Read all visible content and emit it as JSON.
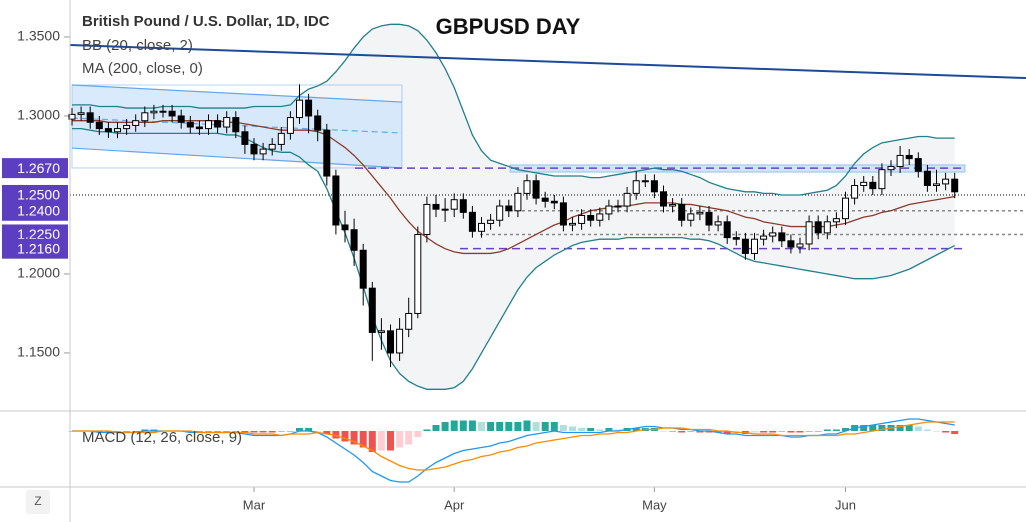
{
  "chart_data": {
    "type": "candlestick",
    "title": "GBPUSD DAY",
    "legend": [
      "British Pound / U.S. Dollar, 1D, IDC",
      "BB (20, close, 2)",
      "MA (200, close, 0)"
    ],
    "categories": [
      null,
      null,
      null,
      null,
      null,
      null,
      null,
      null,
      null,
      null,
      null,
      null,
      null,
      null,
      null,
      null,
      null,
      null,
      null,
      null,
      "Mar",
      null,
      null,
      null,
      null,
      null,
      null,
      null,
      null,
      null,
      null,
      null,
      null,
      null,
      null,
      null,
      null,
      null,
      null,
      null,
      null,
      null,
      "Apr",
      null,
      null,
      null,
      null,
      null,
      null,
      null,
      null,
      null,
      null,
      null,
      null,
      null,
      null,
      null,
      null,
      null,
      null,
      null,
      null,
      null,
      "May",
      null,
      null,
      null,
      null,
      null,
      null,
      null,
      null,
      null,
      null,
      null,
      null,
      null,
      null,
      null,
      null,
      null,
      null,
      null,
      null,
      "Jun",
      null,
      null,
      null,
      null,
      null,
      null,
      null,
      null,
      null,
      null,
      null,
      null
    ],
    "open": [
      1.298,
      1.301,
      1.302,
      1.296,
      1.292,
      1.29,
      1.292,
      1.294,
      1.297,
      1.302,
      1.303,
      1.303,
      1.3,
      1.296,
      1.293,
      1.292,
      1.297,
      1.293,
      1.299,
      1.29,
      1.282,
      1.276,
      1.279,
      1.282,
      1.289,
      1.299,
      1.31,
      1.3,
      1.291,
      1.262,
      1.231,
      1.228,
      1.215,
      1.191,
      1.163,
      1.164,
      1.15,
      1.165,
      1.175,
      1.225,
      1.244,
      1.241,
      1.241,
      1.247,
      1.239,
      1.227,
      1.232,
      1.234,
      1.243,
      1.24,
      1.251,
      1.259,
      1.248,
      1.246,
      1.245,
      1.231,
      1.232,
      1.237,
      1.234,
      1.238,
      1.243,
      1.243,
      1.251,
      1.259,
      1.259,
      1.252,
      1.243,
      1.244,
      1.234,
      1.238,
      1.239,
      1.231,
      1.233,
      1.223,
      1.222,
      1.213,
      1.222,
      1.224,
      1.226,
      1.221,
      1.217,
      1.219,
      1.233,
      1.226,
      1.233,
      1.235,
      1.248,
      1.256,
      1.258,
      1.254,
      1.266,
      1.268,
      1.275,
      1.273,
      1.265,
      1.256,
      1.257,
      1.26
    ],
    "high": [
      1.305,
      1.306,
      1.306,
      1.3,
      1.296,
      1.296,
      1.298,
      1.301,
      1.306,
      1.307,
      1.307,
      1.307,
      1.304,
      1.3,
      1.297,
      1.301,
      1.301,
      1.303,
      1.303,
      1.294,
      1.286,
      1.283,
      1.286,
      1.293,
      1.303,
      1.32,
      1.314,
      1.304,
      1.295,
      1.266,
      1.24,
      1.235,
      1.219,
      1.195,
      1.172,
      1.168,
      1.172,
      1.185,
      1.23,
      1.249,
      1.25,
      1.248,
      1.251,
      1.251,
      1.243,
      1.236,
      1.238,
      1.247,
      1.247,
      1.255,
      1.263,
      1.263,
      1.252,
      1.25,
      1.249,
      1.236,
      1.241,
      1.241,
      1.242,
      1.247,
      1.247,
      1.255,
      1.265,
      1.263,
      1.263,
      1.256,
      1.248,
      1.248,
      1.242,
      1.243,
      1.243,
      1.237,
      1.237,
      1.227,
      1.226,
      1.226,
      1.228,
      1.23,
      1.23,
      1.225,
      1.223,
      1.237,
      1.237,
      1.237,
      1.239,
      1.252,
      1.26,
      1.262,
      1.262,
      1.27,
      1.272,
      1.281,
      1.279,
      1.277,
      1.269,
      1.266,
      1.264,
      1.264
    ],
    "low": [
      1.294,
      1.297,
      1.292,
      1.288,
      1.286,
      1.286,
      1.288,
      1.29,
      1.293,
      1.298,
      1.299,
      1.296,
      1.292,
      1.289,
      1.288,
      1.288,
      1.289,
      1.289,
      1.286,
      1.276,
      1.272,
      1.272,
      1.275,
      1.278,
      1.285,
      1.295,
      1.289,
      1.284,
      1.256,
      1.225,
      1.22,
      1.205,
      1.18,
      1.145,
      1.152,
      1.141,
      1.145,
      1.16,
      1.172,
      1.22,
      1.236,
      1.233,
      1.236,
      1.235,
      1.223,
      1.223,
      1.228,
      1.23,
      1.236,
      1.236,
      1.247,
      1.244,
      1.242,
      1.241,
      1.227,
      1.227,
      1.228,
      1.23,
      1.23,
      1.234,
      1.239,
      1.239,
      1.247,
      1.255,
      1.248,
      1.239,
      1.239,
      1.23,
      1.23,
      1.234,
      1.227,
      1.227,
      1.219,
      1.218,
      1.209,
      1.209,
      1.218,
      1.22,
      1.217,
      1.213,
      1.213,
      1.215,
      1.222,
      1.222,
      1.229,
      1.231,
      1.244,
      1.252,
      1.25,
      1.25,
      1.262,
      1.264,
      1.269,
      1.261,
      1.252,
      1.252,
      1.253,
      1.248
    ],
    "close": [
      1.301,
      1.302,
      1.296,
      1.292,
      1.29,
      1.292,
      1.294,
      1.297,
      1.302,
      1.303,
      1.303,
      1.3,
      1.296,
      1.293,
      1.292,
      1.297,
      1.293,
      1.299,
      1.29,
      1.282,
      1.276,
      1.279,
      1.282,
      1.289,
      1.299,
      1.31,
      1.3,
      1.291,
      1.262,
      1.231,
      1.228,
      1.215,
      1.191,
      1.163,
      1.164,
      1.15,
      1.165,
      1.175,
      1.225,
      1.244,
      1.241,
      1.241,
      1.247,
      1.239,
      1.227,
      1.232,
      1.234,
      1.243,
      1.24,
      1.251,
      1.259,
      1.248,
      1.246,
      1.245,
      1.231,
      1.232,
      1.237,
      1.234,
      1.238,
      1.243,
      1.243,
      1.251,
      1.259,
      1.259,
      1.252,
      1.243,
      1.244,
      1.234,
      1.238,
      1.239,
      1.231,
      1.233,
      1.223,
      1.222,
      1.213,
      1.222,
      1.224,
      1.226,
      1.221,
      1.217,
      1.219,
      1.233,
      1.226,
      1.233,
      1.235,
      1.248,
      1.256,
      1.258,
      1.254,
      1.266,
      1.268,
      1.275,
      1.273,
      1.265,
      1.256,
      1.257,
      1.26,
      1.252
    ],
    "up_color": "#ffffff",
    "down_color": "#000000",
    "bb_fill": "#f3f4f6",
    "overlays": [
      {
        "color": "#22808a",
        "values": [
          1.307,
          1.307,
          1.307,
          1.306,
          1.306,
          1.306,
          1.305,
          1.305,
          1.305,
          1.305,
          1.306,
          1.306,
          1.306,
          1.306,
          1.305,
          1.305,
          1.305,
          1.305,
          1.305,
          1.305,
          1.306,
          1.306,
          1.306,
          1.306,
          1.307,
          1.313,
          1.317,
          1.319,
          1.322,
          1.328,
          1.335,
          1.343,
          1.35,
          1.355,
          1.357,
          1.358,
          1.358,
          1.357,
          1.354,
          1.348,
          1.34,
          1.33,
          1.318,
          1.303,
          1.288,
          1.278,
          1.272,
          1.27,
          1.268,
          1.266,
          1.265,
          1.264,
          1.263,
          1.262,
          1.262,
          1.262,
          1.262,
          1.261,
          1.261,
          1.262,
          1.263,
          1.264,
          1.265,
          1.266,
          1.267,
          1.266,
          1.266,
          1.265,
          1.263,
          1.261,
          1.258,
          1.256,
          1.254,
          1.253,
          1.252,
          1.252,
          1.251,
          1.251,
          1.25,
          1.25,
          1.25,
          1.251,
          1.252,
          1.253,
          1.256,
          1.262,
          1.27,
          1.276,
          1.28,
          1.283,
          1.284,
          1.285,
          1.286,
          1.287,
          1.287,
          1.286,
          1.286,
          1.286
        ]
      },
      {
        "color": "#22808a",
        "values": [
          1.292,
          1.292,
          1.291,
          1.29,
          1.29,
          1.289,
          1.289,
          1.289,
          1.289,
          1.289,
          1.289,
          1.289,
          1.289,
          1.289,
          1.289,
          1.289,
          1.289,
          1.288,
          1.288,
          1.286,
          1.283,
          1.28,
          1.278,
          1.277,
          1.277,
          1.274,
          1.269,
          1.265,
          1.254,
          1.24,
          1.226,
          1.21,
          1.192,
          1.173,
          1.158,
          1.145,
          1.137,
          1.132,
          1.129,
          1.127,
          1.127,
          1.127,
          1.128,
          1.132,
          1.14,
          1.15,
          1.16,
          1.17,
          1.18,
          1.19,
          1.198,
          1.204,
          1.208,
          1.212,
          1.215,
          1.218,
          1.22,
          1.221,
          1.222,
          1.222,
          1.222,
          1.223,
          1.223,
          1.223,
          1.223,
          1.223,
          1.223,
          1.223,
          1.222,
          1.222,
          1.221,
          1.219,
          1.216,
          1.213,
          1.21,
          1.208,
          1.207,
          1.206,
          1.205,
          1.204,
          1.203,
          1.202,
          1.201,
          1.2,
          1.199,
          1.198,
          1.197,
          1.197,
          1.197,
          1.198,
          1.199,
          1.201,
          1.203,
          1.206,
          1.209,
          1.212,
          1.215,
          1.218
        ]
      },
      {
        "color": "#8d3b2b",
        "values": [
          1.297,
          1.297,
          1.297,
          1.297,
          1.296,
          1.296,
          1.296,
          1.296,
          1.296,
          1.296,
          1.297,
          1.297,
          1.297,
          1.297,
          1.297,
          1.297,
          1.297,
          1.296,
          1.296,
          1.295,
          1.294,
          1.293,
          1.292,
          1.291,
          1.291,
          1.291,
          1.291,
          1.29,
          1.288,
          1.284,
          1.28,
          1.275,
          1.269,
          1.262,
          1.255,
          1.248,
          1.24,
          1.233,
          1.227,
          1.223,
          1.219,
          1.216,
          1.214,
          1.213,
          1.213,
          1.213,
          1.213,
          1.214,
          1.216,
          1.219,
          1.222,
          1.225,
          1.228,
          1.231,
          1.233,
          1.236,
          1.238,
          1.24,
          1.241,
          1.242,
          1.243,
          1.243,
          1.244,
          1.245,
          1.245,
          1.245,
          1.245,
          1.244,
          1.244,
          1.243,
          1.242,
          1.241,
          1.24,
          1.238,
          1.236,
          1.235,
          1.233,
          1.232,
          1.231,
          1.23,
          1.23,
          1.23,
          1.23,
          1.23,
          1.231,
          1.232,
          1.234,
          1.236,
          1.237,
          1.239,
          1.24,
          1.242,
          1.244,
          1.245,
          1.246,
          1.247,
          1.248,
          1.249
        ]
      }
    ],
    "ylim": [
      1.1139,
      1.3734
    ],
    "yticks": [
      {
        "value": 1.15,
        "label": "1.1500"
      },
      {
        "value": 1.2,
        "label": "1.2000"
      },
      {
        "value": 1.3,
        "label": "1.3000"
      },
      {
        "value": 1.35,
        "label": "1.3500"
      }
    ],
    "levels": [
      {
        "value": 1.267,
        "label": "1.2670",
        "color": "#6a3fc9",
        "line": "dashed"
      },
      {
        "value": 1.25,
        "label": "1.2500",
        "color": "#000000",
        "line": "dotted"
      },
      {
        "value": 1.24,
        "label": "1.2400",
        "color": "#888888",
        "line": "dashed"
      },
      {
        "value": 1.225,
        "label": "1.2250",
        "color": "#888888",
        "line": "dashed"
      },
      {
        "value": 1.216,
        "label": "1.2160",
        "color": "#6a3fc9",
        "line": "dashed"
      }
    ],
    "level_box_color": "#5c3fc0",
    "trendline": {
      "color": "#1d4a9a",
      "values": [
        1.3449,
        1.324
      ]
    },
    "channel": {
      "color": "#64a8e8",
      "fill": "#cfe5fb",
      "upper": [
        1.3196,
        1.3088
      ],
      "middle": [
        1.2987,
        1.2892
      ],
      "lower": [
        1.2797,
        1.2671
      ]
    },
    "zone": {
      "color": "#cfe5fb",
      "values": [
        1.269,
        1.2645
      ]
    },
    "macd": {
      "label": "MACD (12, 26, close, 9)",
      "ylim": [
        -0.036,
        0.012
      ],
      "macd_color": "#2196f3",
      "signal_color": "#ff8a00",
      "hist_colors": [
        "#26a69a",
        "#b2dfdb",
        "#ef5350",
        "#ffcdd2"
      ],
      "macd": [
        0.0,
        0.0,
        0.0,
        -0.001,
        -0.001,
        -0.001,
        -0.001,
        -0.001,
        0.0,
        0.0,
        0.0,
        0.0,
        0.0,
        -0.001,
        -0.001,
        -0.001,
        -0.001,
        -0.001,
        -0.001,
        -0.002,
        -0.003,
        -0.003,
        -0.003,
        -0.003,
        -0.002,
        0.0,
        0.0,
        -0.001,
        -0.004,
        -0.008,
        -0.012,
        -0.016,
        -0.021,
        -0.027,
        -0.03,
        -0.033,
        -0.034,
        -0.034,
        -0.03,
        -0.025,
        -0.021,
        -0.018,
        -0.015,
        -0.013,
        -0.012,
        -0.011,
        -0.01,
        -0.008,
        -0.007,
        -0.005,
        -0.003,
        -0.002,
        -0.001,
        0.0,
        -0.001,
        -0.001,
        -0.001,
        -0.001,
        -0.001,
        0.0,
        0.0,
        0.001,
        0.002,
        0.003,
        0.003,
        0.002,
        0.002,
        0.001,
        0.001,
        0.0,
        0.0,
        -0.001,
        -0.002,
        -0.002,
        -0.003,
        -0.003,
        -0.003,
        -0.003,
        -0.003,
        -0.004,
        -0.004,
        -0.003,
        -0.003,
        -0.002,
        -0.002,
        0.0,
        0.002,
        0.003,
        0.004,
        0.005,
        0.006,
        0.007,
        0.008,
        0.008,
        0.007,
        0.006,
        0.005,
        0.004
      ],
      "signal": [
        0.0,
        0.0,
        0.0,
        0.0,
        0.0,
        -0.001,
        -0.001,
        -0.001,
        -0.001,
        -0.001,
        0.0,
        0.0,
        0.0,
        0.0,
        -0.001,
        -0.001,
        -0.001,
        -0.001,
        -0.001,
        -0.001,
        -0.002,
        -0.002,
        -0.002,
        -0.003,
        -0.002,
        -0.002,
        -0.002,
        -0.001,
        -0.002,
        -0.003,
        -0.005,
        -0.007,
        -0.01,
        -0.013,
        -0.017,
        -0.02,
        -0.023,
        -0.025,
        -0.026,
        -0.026,
        -0.025,
        -0.024,
        -0.022,
        -0.02,
        -0.019,
        -0.017,
        -0.016,
        -0.014,
        -0.013,
        -0.011,
        -0.01,
        -0.008,
        -0.007,
        -0.006,
        -0.005,
        -0.004,
        -0.003,
        -0.003,
        -0.002,
        -0.002,
        -0.001,
        -0.001,
        0.0,
        0.001,
        0.001,
        0.002,
        0.002,
        0.002,
        0.001,
        0.001,
        0.001,
        0.0,
        0.0,
        -0.001,
        -0.001,
        -0.002,
        -0.002,
        -0.002,
        -0.003,
        -0.003,
        -0.003,
        -0.003,
        -0.003,
        -0.003,
        -0.003,
        -0.002,
        -0.002,
        -0.001,
        0.0,
        0.001,
        0.002,
        0.003,
        0.004,
        0.005,
        0.006,
        0.006,
        0.006,
        0.006
      ],
      "hist": [
        0,
        0,
        0,
        -0.001,
        -0.001,
        0,
        0,
        0,
        0.001,
        0.001,
        0,
        0,
        0,
        -0.001,
        0,
        0,
        0,
        0,
        0,
        -0.001,
        -0.001,
        -0.001,
        -0.001,
        0,
        0,
        0.002,
        0.002,
        0,
        -0.002,
        -0.005,
        -0.007,
        -0.009,
        -0.011,
        -0.014,
        -0.013,
        -0.013,
        -0.011,
        -0.009,
        -0.004,
        0.001,
        0.004,
        0.006,
        0.007,
        0.007,
        0.007,
        0.006,
        0.006,
        0.006,
        0.006,
        0.006,
        0.007,
        0.006,
        0.006,
        0.006,
        0.004,
        0.003,
        0.002,
        0.002,
        0.001,
        0.002,
        0.001,
        0.002,
        0.002,
        0.002,
        0.002,
        0,
        0,
        -0.001,
        0,
        -0.001,
        -0.001,
        -0.001,
        -0.002,
        -0.001,
        -0.002,
        -0.001,
        -0.001,
        -0.001,
        0,
        -0.001,
        -0.001,
        0,
        0,
        0.001,
        0.001,
        0.002,
        0.004,
        0.004,
        0.004,
        0.004,
        0.004,
        0.004,
        0.004,
        0.003,
        0.001,
        0,
        -0.001,
        -0.002
      ]
    }
  }
}
